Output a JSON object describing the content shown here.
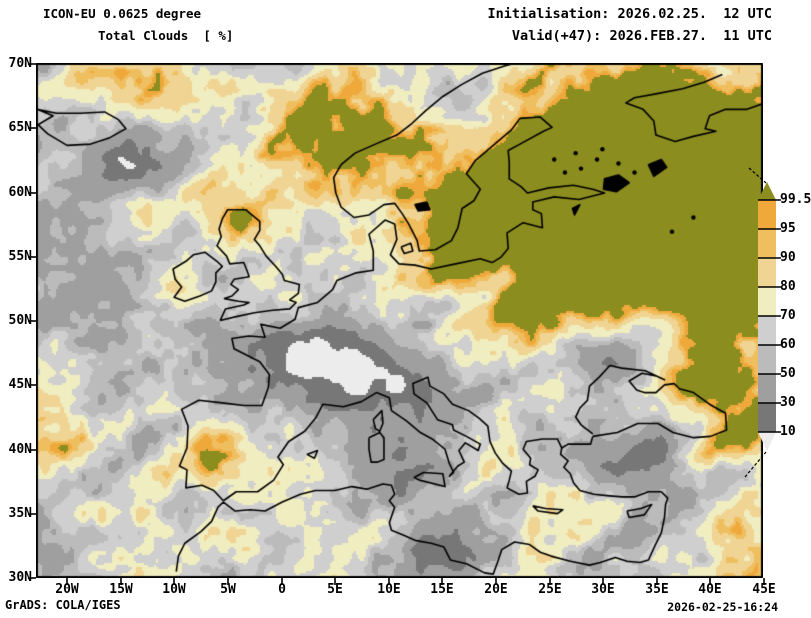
{
  "header": {
    "model_line": "ICON-EU 0.0625 degree",
    "variable_line": "Total Clouds  [ %]",
    "init_line": "Initialisation: 2026.02.25.  12 UTC",
    "valid_line": "Valid(+47): 2026.FEB.27.  11 UTC"
  },
  "map": {
    "y_axis_labels": [
      "70N",
      "65N",
      "60N",
      "55N",
      "50N",
      "45N",
      "40N",
      "35N",
      "30N"
    ],
    "x_axis_labels": [
      "20W",
      "15W",
      "10W",
      "5W",
      "0",
      "5E",
      "10E",
      "15E",
      "20E",
      "25E",
      "30E",
      "35E",
      "40E",
      "45E"
    ]
  },
  "colorbar": {
    "tick_labels": [
      "99.5",
      "95",
      "90",
      "80",
      "70",
      "60",
      "50",
      "30",
      "10"
    ],
    "thresholds": [
      99.5,
      95,
      90,
      80,
      70,
      60,
      50,
      30,
      10
    ],
    "segment_colors": [
      "#8C8D1F",
      "#EFA93B",
      "#EFBE5F",
      "#F0D493",
      "#F0EDC0",
      "#CFCFCF",
      "#BBBBBB",
      "#9F9F9F",
      "#777777",
      "#ECECEC"
    ]
  },
  "footer": {
    "credit": "GrADS: COLA/IGES",
    "timestamp": "2026-02-25-16:24"
  }
}
